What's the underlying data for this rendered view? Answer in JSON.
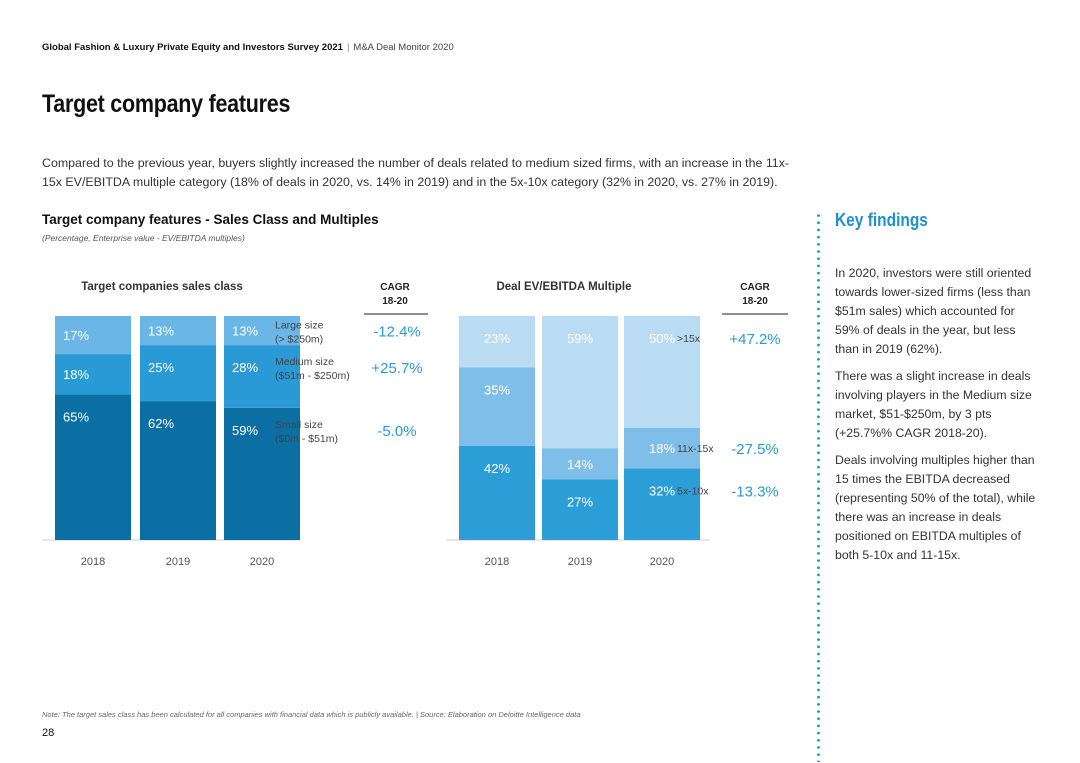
{
  "header": {
    "report_title": "Global Fashion & Luxury Private Equity and Investors Survey 2021",
    "separator": "|",
    "report_subtitle": "M&A Deal Monitor 2020"
  },
  "page_title": "Target company features",
  "intro_text": "Compared to the previous year, buyers slightly increased the number of deals related to medium sized firms, with an increase in the 11x-15x EV/EBITDA multiple category (18% of deals in 2020, vs. 14% in 2019) and in the 5x-10x category (32% in 2020, vs. 27% in 2019).",
  "figure": {
    "title": "Target company features - Sales Class and Multiples",
    "subtitle": "(Percentage, Enterprise value - EV/EBITDA multiples)"
  },
  "chart_data": [
    {
      "type": "bar",
      "stacked": true,
      "title": "Target companies sales class",
      "categories": [
        "2018",
        "2019",
        "2020"
      ],
      "series": [
        {
          "name": "Small size",
          "label_line1": "Small size",
          "label_line2": "($0m - $51m)",
          "values": [
            65,
            62,
            59
          ],
          "labels": [
            "65%",
            "62%",
            "59%"
          ],
          "color": "#0b6fa3",
          "cagr": "-5.0%"
        },
        {
          "name": "Medium size",
          "label_line1": "Medium size",
          "label_line2": "($51m - $250m)",
          "values": [
            18,
            25,
            28
          ],
          "labels": [
            "18%",
            "25%",
            "28%"
          ],
          "color": "#2a9ad6",
          "cagr": "+25.7%"
        },
        {
          "name": "Large size",
          "label_line1": "Large size",
          "label_line2": "(> $250m)",
          "values": [
            17,
            13,
            13
          ],
          "labels": [
            "17%",
            "13%",
            "13%"
          ],
          "color": "#6ab6e6",
          "cagr": "-12.4%"
        }
      ],
      "cagr_header": [
        "CAGR",
        "18-20"
      ],
      "ylim": [
        0,
        100
      ]
    },
    {
      "type": "bar",
      "stacked": true,
      "title": "Deal EV/EBITDA Multiple",
      "categories": [
        "2018",
        "2019",
        "2020"
      ],
      "series": [
        {
          "name": "5x-10x",
          "label_line1": "5x-10x",
          "label_line2": "",
          "values": [
            42,
            27,
            32
          ],
          "labels": [
            "42%",
            "27%",
            "32%"
          ],
          "color": "#2b9ed8",
          "cagr": "-13.3%"
        },
        {
          "name": "11x-15x",
          "label_line1": "11x-15x",
          "label_line2": "",
          "values": [
            35,
            14,
            18
          ],
          "labels": [
            "35%",
            "14%",
            "18%"
          ],
          "color": "#7fbee8",
          "cagr": "-27.5%"
        },
        {
          "name": ">15x",
          "label_line1": ">15x",
          "label_line2": "",
          "values": [
            23,
            59,
            50
          ],
          "labels": [
            "23%",
            "59%",
            "50%"
          ],
          "color": "#b9dcf3",
          "cagr": "+47.2%"
        }
      ],
      "cagr_header": [
        "CAGR",
        "18-20"
      ],
      "ylim": [
        0,
        100
      ]
    }
  ],
  "key_findings": {
    "title": "Key findings",
    "paragraphs": [
      "In 2020, investors were still oriented towards lower-sized firms (less than $51m sales) which accounted for 59% of deals in the year, but less than in 2019 (62%).",
      "There was a slight increase in deals involving players in the Medium size market, $51-$250m, by 3 pts (+25.7%% CAGR 2018-20).",
      "Deals involving multiples higher than 15 times the EBITDA decreased (representing 50% of the total), while there was an increase in deals positioned on EBITDA multiples of both 5-10x and 11-15x."
    ]
  },
  "note": "Note: The target sales class has been calculated for all companies with financial data which is publicly available. | Source: Elaboration on Deloitte Intelligence data",
  "page_number": "28",
  "colors": {
    "accent_title": "#1e8fd0",
    "cagr_text": "#2a9ad6",
    "dotted_divider": "#1aa39b"
  }
}
